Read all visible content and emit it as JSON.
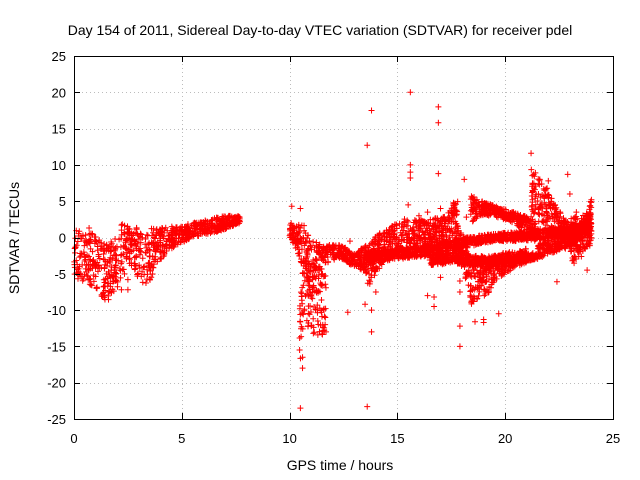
{
  "chart_data": {
    "type": "scatter",
    "title": "Day 154 of 2011, Sidereal Day-to-day VTEC variation (SDTVAR) for receiver pdel",
    "xlabel": "GPS time / hours",
    "ylabel": "SDTVAR / TECUs",
    "xlim": [
      0,
      25
    ],
    "ylim": [
      -25,
      25
    ],
    "xticks": [
      0,
      5,
      10,
      15,
      20,
      25
    ],
    "yticks": [
      -25,
      -20,
      -15,
      -10,
      -5,
      0,
      5,
      10,
      15,
      20,
      25
    ],
    "grid": true,
    "marker": "+",
    "color": "#ff0000",
    "bands": [
      {
        "x": [
          0.0,
          0.5,
          1.0,
          1.5,
          2.0,
          2.4
        ],
        "lo": [
          -6.0,
          -6.0,
          -7.0,
          -9.0,
          -7.0,
          -5.0
        ],
        "hi": [
          1.0,
          1.0,
          0.5,
          -1.0,
          0.0,
          4.0
        ]
      },
      {
        "x": [
          2.4,
          2.9,
          3.3,
          3.8,
          4.3,
          4.8
        ],
        "lo": [
          -3.0,
          -5.0,
          -8.0,
          -4.0,
          -2.0,
          -1.0
        ],
        "hi": [
          2.0,
          1.5,
          1.0,
          1.5,
          1.5,
          1.5
        ]
      },
      {
        "x": [
          4.8,
          5.5,
          6.2,
          6.9,
          7.7
        ],
        "lo": [
          -1.0,
          0.0,
          0.5,
          1.0,
          2.0
        ],
        "hi": [
          1.5,
          2.0,
          2.5,
          3.0,
          3.0
        ]
      },
      {
        "x": [
          10.0,
          10.6,
          11.0,
          11.5
        ],
        "lo": [
          0.0,
          -4.0,
          -8.0,
          -3.0
        ],
        "hi": [
          2.0,
          2.0,
          0.0,
          -1.0
        ]
      },
      {
        "x": [
          10.45,
          10.6,
          10.75
        ],
        "lo": [
          -20.0,
          -13.0,
          -8.0
        ],
        "hi": [
          -9.0,
          -5.0,
          -3.0
        ]
      },
      {
        "x": [
          10.8,
          11.1,
          11.4,
          11.7
        ],
        "lo": [
          -12.0,
          -13.5,
          -13.5,
          -14.0
        ],
        "hi": [
          -3.0,
          -4.0,
          -4.0,
          -5.0
        ]
      },
      {
        "x": [
          11.5,
          12.3,
          13.0,
          13.6
        ],
        "lo": [
          -4.0,
          -3.0,
          -4.0,
          -5.0
        ],
        "hi": [
          -1.0,
          -1.0,
          -2.0,
          -1.0
        ]
      },
      {
        "x": [
          13.6,
          14.3,
          15.0,
          15.6
        ],
        "lo": [
          -7.0,
          -4.0,
          -2.0,
          -1.5
        ],
        "hi": [
          -1.0,
          1.0,
          2.0,
          3.0
        ]
      },
      {
        "x": [
          15.6,
          16.5,
          17.3,
          17.8
        ],
        "lo": [
          -1.5,
          -1.0,
          -0.5,
          0.5
        ],
        "hi": [
          2.5,
          2.5,
          3.0,
          6.0
        ]
      },
      {
        "x": [
          13.5,
          15.0,
          16.5,
          18.0,
          19.5,
          21.0,
          22.5,
          24.0
        ],
        "lo": [
          -3.5,
          -3.0,
          -2.5,
          -1.5,
          -0.5,
          -0.5,
          0.0,
          1.0
        ],
        "hi": [
          -2.0,
          -1.5,
          -1.0,
          0.0,
          0.5,
          1.0,
          1.5,
          2.0
        ]
      },
      {
        "x": [
          16.5,
          17.5,
          18.5,
          19.5,
          20.5,
          21.5
        ],
        "lo": [
          -4.0,
          -3.5,
          -4.0,
          -4.0,
          -3.5,
          -3.0
        ],
        "hi": [
          -2.5,
          -2.0,
          -2.5,
          -2.5,
          -2.5,
          -2.0
        ]
      },
      {
        "x": [
          17.7,
          18.1,
          18.5,
          19.0
        ],
        "lo": [
          -2.0,
          -5.0,
          -10.0,
          -7.0
        ],
        "hi": [
          2.0,
          0.0,
          -3.0,
          -2.0
        ]
      },
      {
        "x": [
          18.4,
          18.9,
          19.4,
          19.9,
          20.4,
          20.9,
          21.4
        ],
        "lo": [
          2.0,
          3.0,
          3.0,
          2.5,
          2.0,
          1.0,
          -1.0
        ],
        "hi": [
          6.0,
          5.0,
          4.5,
          4.0,
          3.5,
          3.0,
          2.0
        ]
      },
      {
        "x": [
          19.0,
          19.5,
          20.0,
          20.5,
          21.0
        ],
        "lo": [
          -9.0,
          -6.0,
          -5.0,
          -4.0,
          -3.5
        ],
        "hi": [
          -3.0,
          -2.5,
          -2.0,
          -2.0,
          -1.5
        ]
      },
      {
        "x": [
          21.2,
          21.8,
          22.4,
          23.0,
          23.6,
          24.0
        ],
        "lo": [
          2.0,
          2.0,
          -1.0,
          -2.0,
          -2.0,
          -1.0
        ],
        "hi": [
          9.5,
          8.0,
          4.0,
          2.0,
          2.0,
          4.0
        ]
      },
      {
        "x": [
          21.5,
          22.3,
          23.1,
          23.8,
          24.0
        ],
        "lo": [
          -3.0,
          -2.0,
          -1.0,
          0.0,
          0.5
        ],
        "hi": [
          -1.0,
          0.0,
          1.0,
          3.0,
          6.0
        ]
      },
      {
        "x": [
          23.0,
          23.5,
          24.0
        ],
        "lo": [
          -5.0,
          -3.0,
          -1.0
        ],
        "hi": [
          3.0,
          3.0,
          5.0
        ]
      }
    ],
    "scatter": [
      [
        10.1,
        4.3
      ],
      [
        10.5,
        4.0
      ],
      [
        10.5,
        -23.5
      ],
      [
        10.6,
        -16.5
      ],
      [
        10.6,
        -18.0
      ],
      [
        12.7,
        -10.3
      ],
      [
        12.8,
        -0.5
      ],
      [
        13.5,
        -9.2
      ],
      [
        13.6,
        -23.3
      ],
      [
        13.6,
        12.7
      ],
      [
        13.8,
        17.5
      ],
      [
        13.8,
        -10.0
      ],
      [
        13.8,
        -13.0
      ],
      [
        14.0,
        -7.5
      ],
      [
        15.6,
        20.0
      ],
      [
        15.6,
        10.0
      ],
      [
        15.6,
        9.0
      ],
      [
        15.6,
        8.2
      ],
      [
        15.5,
        4.5
      ],
      [
        16.0,
        3.0
      ],
      [
        16.4,
        3.5
      ],
      [
        16.4,
        -8.0
      ],
      [
        16.7,
        -8.2
      ],
      [
        16.7,
        -9.5
      ],
      [
        16.9,
        18.0
      ],
      [
        16.9,
        15.8
      ],
      [
        16.9,
        8.8
      ],
      [
        17.0,
        4.0
      ],
      [
        17.0,
        2.2
      ],
      [
        17.2,
        2.2
      ],
      [
        17.0,
        -5.5
      ],
      [
        17.9,
        -15.0
      ],
      [
        17.9,
        -12.2
      ],
      [
        17.9,
        -7.5
      ],
      [
        17.9,
        -6.0
      ],
      [
        18.1,
        8.0
      ],
      [
        18.2,
        2.8
      ],
      [
        18.6,
        -11.6
      ],
      [
        19.0,
        -11.3
      ],
      [
        19.0,
        -11.7
      ],
      [
        19.0,
        -5.5
      ],
      [
        19.7,
        -10.5
      ],
      [
        21.2,
        11.6
      ],
      [
        21.4,
        8.9
      ],
      [
        22.0,
        7.8
      ],
      [
        22.0,
        5.5
      ],
      [
        22.4,
        -6.1
      ],
      [
        22.9,
        8.7
      ],
      [
        23.0,
        6.0
      ],
      [
        23.3,
        3.5
      ],
      [
        23.5,
        -1.0
      ],
      [
        23.8,
        -4.5
      ],
      [
        0.7,
        1.3
      ],
      [
        2.5,
        -5.8
      ],
      [
        2.5,
        -7.2
      ],
      [
        2.2,
        -7.2
      ]
    ]
  }
}
